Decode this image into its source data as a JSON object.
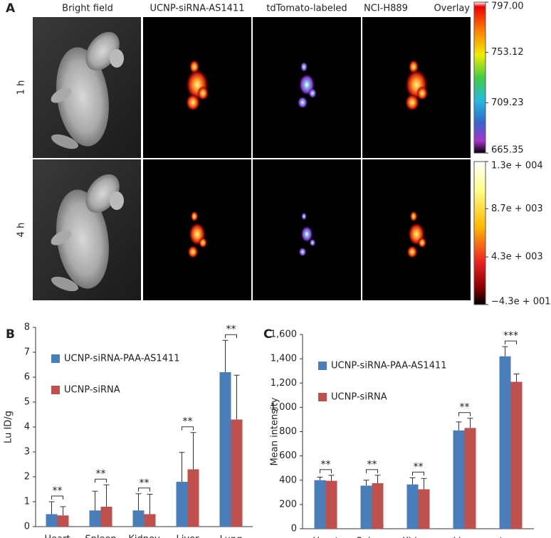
{
  "panel_a": {
    "label": "A",
    "columns": [
      "Bright field",
      "UCNP-siRNA-AS1411",
      "tdTomato-labeled",
      "NCI-H889",
      "Overlay"
    ],
    "rows": [
      "1 h",
      "4 h"
    ],
    "colorbars": [
      {
        "ticks": [
          {
            "value": 797,
            "label": "797.00"
          },
          {
            "value": 753.12,
            "label": "753.12"
          },
          {
            "value": 709.23,
            "label": "709.23"
          },
          {
            "value": 665.35,
            "label": "665.35"
          }
        ]
      },
      {
        "ticks": [
          {
            "value": 13000,
            "label": "1.3e + 004"
          },
          {
            "value": 8700,
            "label": "8.7e + 003"
          },
          {
            "value": 4300,
            "label": "4.3e + 003"
          },
          {
            "value": -43,
            "label": "−4.3e + 001"
          }
        ]
      }
    ]
  },
  "chart_data": [
    {
      "type": "bar",
      "panel_label": "B",
      "ylabel": "Lu ID/g",
      "categories": [
        "Heart",
        "Spleen",
        "Kidney",
        "Liver",
        "Lung (tumor)"
      ],
      "series": [
        {
          "name": "UCNP-siRNA-PAA-AS1411",
          "color": "#4a7ebb",
          "values": [
            0.5,
            0.65,
            0.65,
            1.8,
            6.2
          ],
          "errors": [
            0.5,
            0.77,
            0.67,
            1.18,
            1.28
          ]
        },
        {
          "name": "UCNP-siRNA",
          "color": "#c0504d",
          "values": [
            0.45,
            0.8,
            0.5,
            2.3,
            4.3
          ],
          "errors": [
            0.35,
            0.88,
            0.8,
            1.48,
            1.78
          ]
        }
      ],
      "significance": [
        "**",
        "**",
        "**",
        "**",
        "**"
      ],
      "ylim": [
        0,
        8
      ],
      "yticks": [
        0,
        1,
        2,
        3,
        4,
        5,
        6,
        7,
        8
      ],
      "legend": "upper left"
    },
    {
      "type": "bar",
      "panel_label": "C",
      "ylabel": "Mean intensity",
      "categories": [
        "Heart",
        "Spleen",
        "Kidney",
        "Liver",
        "Lung (tumor)"
      ],
      "series": [
        {
          "name": "UCNP-siRNA-PAA-AS1411",
          "color": "#4a7ebb",
          "values": [
            400,
            355,
            365,
            810,
            1420
          ],
          "errors": [
            25,
            45,
            55,
            70,
            80
          ]
        },
        {
          "name": "UCNP-siRNA",
          "color": "#c0504d",
          "values": [
            395,
            375,
            325,
            830,
            1210
          ],
          "errors": [
            45,
            65,
            90,
            80,
            65
          ]
        }
      ],
      "significance": [
        "**",
        "**",
        "**",
        "**",
        "***"
      ],
      "ylim": [
        0,
        1600
      ],
      "yticks": [
        0,
        200,
        400,
        600,
        800,
        {
          "value": 1000,
          "label": "1,000"
        },
        {
          "value": 1200,
          "label": "1,200"
        },
        {
          "value": 1400,
          "label": "1,400"
        },
        {
          "value": 1600,
          "label": "1,600"
        }
      ],
      "legend": "upper left"
    }
  ]
}
